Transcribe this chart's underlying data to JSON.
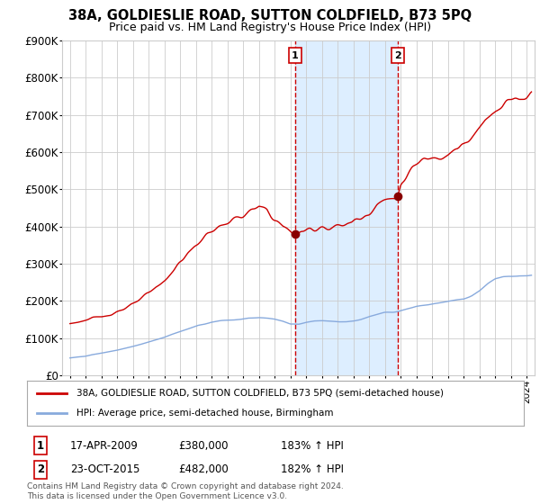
{
  "title": "38A, GOLDIESLIE ROAD, SUTTON COLDFIELD, B73 5PQ",
  "subtitle": "Price paid vs. HM Land Registry's House Price Index (HPI)",
  "legend_line1": "38A, GOLDIESLIE ROAD, SUTTON COLDFIELD, B73 5PQ (semi-detached house)",
  "legend_line2": "HPI: Average price, semi-detached house, Birmingham",
  "transaction1_date": "17-APR-2009",
  "transaction1_price": 380000,
  "transaction1_hpi": "183% ↑ HPI",
  "transaction1_year": 2009.29,
  "transaction2_date": "23-OCT-2015",
  "transaction2_price": 482000,
  "transaction2_hpi": "182% ↑ HPI",
  "transaction2_year": 2015.8,
  "footnote": "Contains HM Land Registry data © Crown copyright and database right 2024.\nThis data is licensed under the Open Government Licence v3.0.",
  "ylim": [
    0,
    900000
  ],
  "xlim_start": 1994.5,
  "xlim_end": 2024.5,
  "house_color": "#cc0000",
  "hpi_color": "#88aadd",
  "vline_color": "#cc0000",
  "shade_color": "#ddeeff",
  "grid_color": "#cccccc",
  "background_color": "#ffffff"
}
